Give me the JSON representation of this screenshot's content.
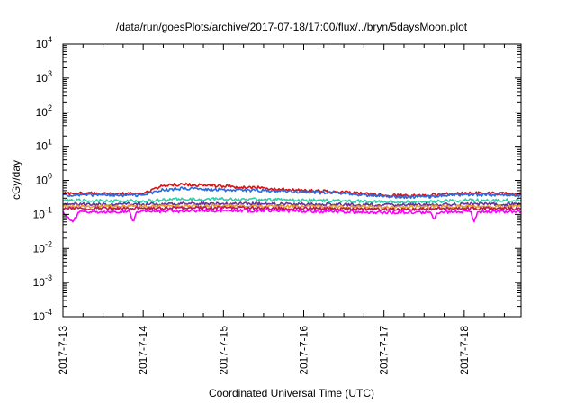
{
  "chart_data": {
    "type": "line",
    "title": "/data/run/goesPlots/archive/2017-07-18/17:00/flux/../bryn/5daysMoon.plot",
    "xlabel": "Coordinated Universal Time (UTC)",
    "ylabel": "cGy/day",
    "y_scale": "log",
    "ylim": [
      0.0001,
      10000
    ],
    "y_ticks": [
      {
        "base": "10",
        "exp": "4",
        "value": 10000
      },
      {
        "base": "10",
        "exp": "3",
        "value": 1000
      },
      {
        "base": "10",
        "exp": "2",
        "value": 100
      },
      {
        "base": "10",
        "exp": "1",
        "value": 10
      },
      {
        "base": "10",
        "exp": "0",
        "value": 1
      },
      {
        "base": "10",
        "exp": "-1",
        "value": 0.1
      },
      {
        "base": "10",
        "exp": "-2",
        "value": 0.01
      },
      {
        "base": "10",
        "exp": "-3",
        "value": 0.001
      },
      {
        "base": "10",
        "exp": "-4",
        "value": 0.0001
      }
    ],
    "xlim": [
      "2017-07-13",
      "2017-07-18T17:00"
    ],
    "x_ticks": [
      "2017-7-13",
      "2017-7-14",
      "2017-7-15",
      "2017-7-16",
      "2017-7-17",
      "2017-7-18"
    ],
    "grid": false,
    "x_tick_marks_on_top_axis": true,
    "series": [
      {
        "color": "#dd1111",
        "points": [
          [
            "2017-07-13T00:00",
            0.42
          ],
          [
            "2017-07-13T12:00",
            0.41
          ],
          [
            "2017-07-14T00:00",
            0.4
          ],
          [
            "2017-07-14T06:00",
            0.7
          ],
          [
            "2017-07-14T12:00",
            0.78
          ],
          [
            "2017-07-14T18:00",
            0.7
          ],
          [
            "2017-07-15T00:00",
            0.68
          ],
          [
            "2017-07-15T12:00",
            0.6
          ],
          [
            "2017-07-16T00:00",
            0.5
          ],
          [
            "2017-07-16T12:00",
            0.45
          ],
          [
            "2017-07-17T00:00",
            0.36
          ],
          [
            "2017-07-17T12:00",
            0.36
          ],
          [
            "2017-07-18T00:00",
            0.42
          ],
          [
            "2017-07-18T12:00",
            0.41
          ],
          [
            "2017-07-18T17:00",
            0.4
          ]
        ]
      },
      {
        "color": "#2a6be0",
        "points": [
          [
            "2017-07-13T00:00",
            0.38
          ],
          [
            "2017-07-13T12:00",
            0.37
          ],
          [
            "2017-07-14T00:00",
            0.37
          ],
          [
            "2017-07-14T06:00",
            0.53
          ],
          [
            "2017-07-14T12:00",
            0.58
          ],
          [
            "2017-07-14T18:00",
            0.55
          ],
          [
            "2017-07-15T00:00",
            0.53
          ],
          [
            "2017-07-15T12:00",
            0.5
          ],
          [
            "2017-07-16T00:00",
            0.45
          ],
          [
            "2017-07-16T12:00",
            0.42
          ],
          [
            "2017-07-17T00:00",
            0.33
          ],
          [
            "2017-07-17T12:00",
            0.33
          ],
          [
            "2017-07-18T00:00",
            0.38
          ],
          [
            "2017-07-18T12:00",
            0.38
          ],
          [
            "2017-07-18T17:00",
            0.37
          ]
        ]
      },
      {
        "color": "#2ecfa6",
        "points": [
          [
            "2017-07-13T00:00",
            0.26
          ],
          [
            "2017-07-13T12:00",
            0.25
          ],
          [
            "2017-07-14T00:00",
            0.25
          ],
          [
            "2017-07-14T12:00",
            0.28
          ],
          [
            "2017-07-15T00:00",
            0.28
          ],
          [
            "2017-07-15T12:00",
            0.27
          ],
          [
            "2017-07-16T00:00",
            0.26
          ],
          [
            "2017-07-16T12:00",
            0.25
          ],
          [
            "2017-07-17T00:00",
            0.23
          ],
          [
            "2017-07-17T12:00",
            0.23
          ],
          [
            "2017-07-18T00:00",
            0.26
          ],
          [
            "2017-07-18T17:00",
            0.26
          ]
        ]
      },
      {
        "color": "#6a2fa0",
        "points": [
          [
            "2017-07-13T00:00",
            0.2
          ],
          [
            "2017-07-14T00:00",
            0.2
          ],
          [
            "2017-07-15T00:00",
            0.21
          ],
          [
            "2017-07-16T00:00",
            0.2
          ],
          [
            "2017-07-17T00:00",
            0.19
          ],
          [
            "2017-07-18T00:00",
            0.2
          ],
          [
            "2017-07-18T17:00",
            0.2
          ]
        ]
      },
      {
        "color": "#e3a22a",
        "points": [
          [
            "2017-07-13T00:00",
            0.17
          ],
          [
            "2017-07-14T00:00",
            0.17
          ],
          [
            "2017-07-15T00:00",
            0.18
          ],
          [
            "2017-07-16T00:00",
            0.17
          ],
          [
            "2017-07-17T00:00",
            0.16
          ],
          [
            "2017-07-18T00:00",
            0.17
          ],
          [
            "2017-07-18T17:00",
            0.17
          ]
        ]
      },
      {
        "color": "#c2185b",
        "points": [
          [
            "2017-07-13T00:00",
            0.15
          ],
          [
            "2017-07-14T00:00",
            0.15
          ],
          [
            "2017-07-15T00:00",
            0.155
          ],
          [
            "2017-07-16T00:00",
            0.15
          ],
          [
            "2017-07-17T00:00",
            0.14
          ],
          [
            "2017-07-18T00:00",
            0.15
          ],
          [
            "2017-07-18T17:00",
            0.15
          ]
        ]
      },
      {
        "color": "#ff00ff",
        "points": [
          [
            "2017-07-13T00:00",
            0.125
          ],
          [
            "2017-07-13T03:00",
            0.06
          ],
          [
            "2017-07-13T05:00",
            0.12
          ],
          [
            "2017-07-13T20:00",
            0.12
          ],
          [
            "2017-07-13T21:00",
            0.06
          ],
          [
            "2017-07-13T22:00",
            0.12
          ],
          [
            "2017-07-15T00:00",
            0.13
          ],
          [
            "2017-07-16T00:00",
            0.125
          ],
          [
            "2017-07-17T00:00",
            0.115
          ],
          [
            "2017-07-17T14:00",
            0.115
          ],
          [
            "2017-07-17T15:00",
            0.07
          ],
          [
            "2017-07-17T16:00",
            0.115
          ],
          [
            "2017-07-18T02:00",
            0.12
          ],
          [
            "2017-07-18T03:00",
            0.06
          ],
          [
            "2017-07-18T04:00",
            0.12
          ],
          [
            "2017-07-18T17:00",
            0.12
          ]
        ]
      }
    ]
  }
}
